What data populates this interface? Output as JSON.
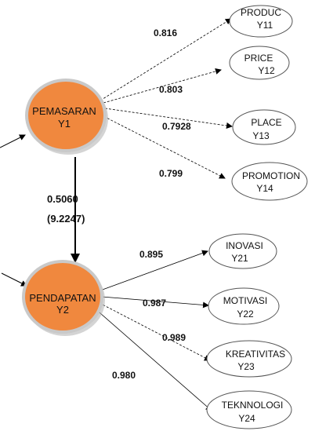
{
  "colors": {
    "latent_fill": "#f0883e",
    "latent_stroke": "#c9c9c9",
    "indicator_fill": "#ffffff",
    "indicator_stroke": "#555555",
    "arrow": "#000000"
  },
  "latent": {
    "pemasaran": {
      "line1": "PEMASARAN",
      "line2": "Y1"
    },
    "pendapatan": {
      "line1": "PENDAPATAN",
      "line2": "Y2"
    }
  },
  "path": {
    "coefficient": "0.5060",
    "t_value": "(9.2247)"
  },
  "indicators": [
    {
      "line1": "PRODUC",
      "line2": "Y11",
      "loading": "0.816"
    },
    {
      "line1": "PRICE",
      "line2": "Y12",
      "loading": "0.803"
    },
    {
      "line1": "PLACE",
      "line2": "Y13",
      "loading": "0.7928"
    },
    {
      "line1": "PROMOTION",
      "line2": "Y14",
      "loading": "0.799"
    },
    {
      "line1": "INOVASI",
      "line2": "Y21",
      "loading": "0.895"
    },
    {
      "line1": "MOTIVASI",
      "line2": "Y22",
      "loading": "0.987"
    },
    {
      "line1": "KREATIVITAS",
      "line2": "Y23",
      "loading": "0.989"
    },
    {
      "line1": "TEKNNOLOGI",
      "line2": "Y24",
      "loading": "0.980"
    }
  ]
}
